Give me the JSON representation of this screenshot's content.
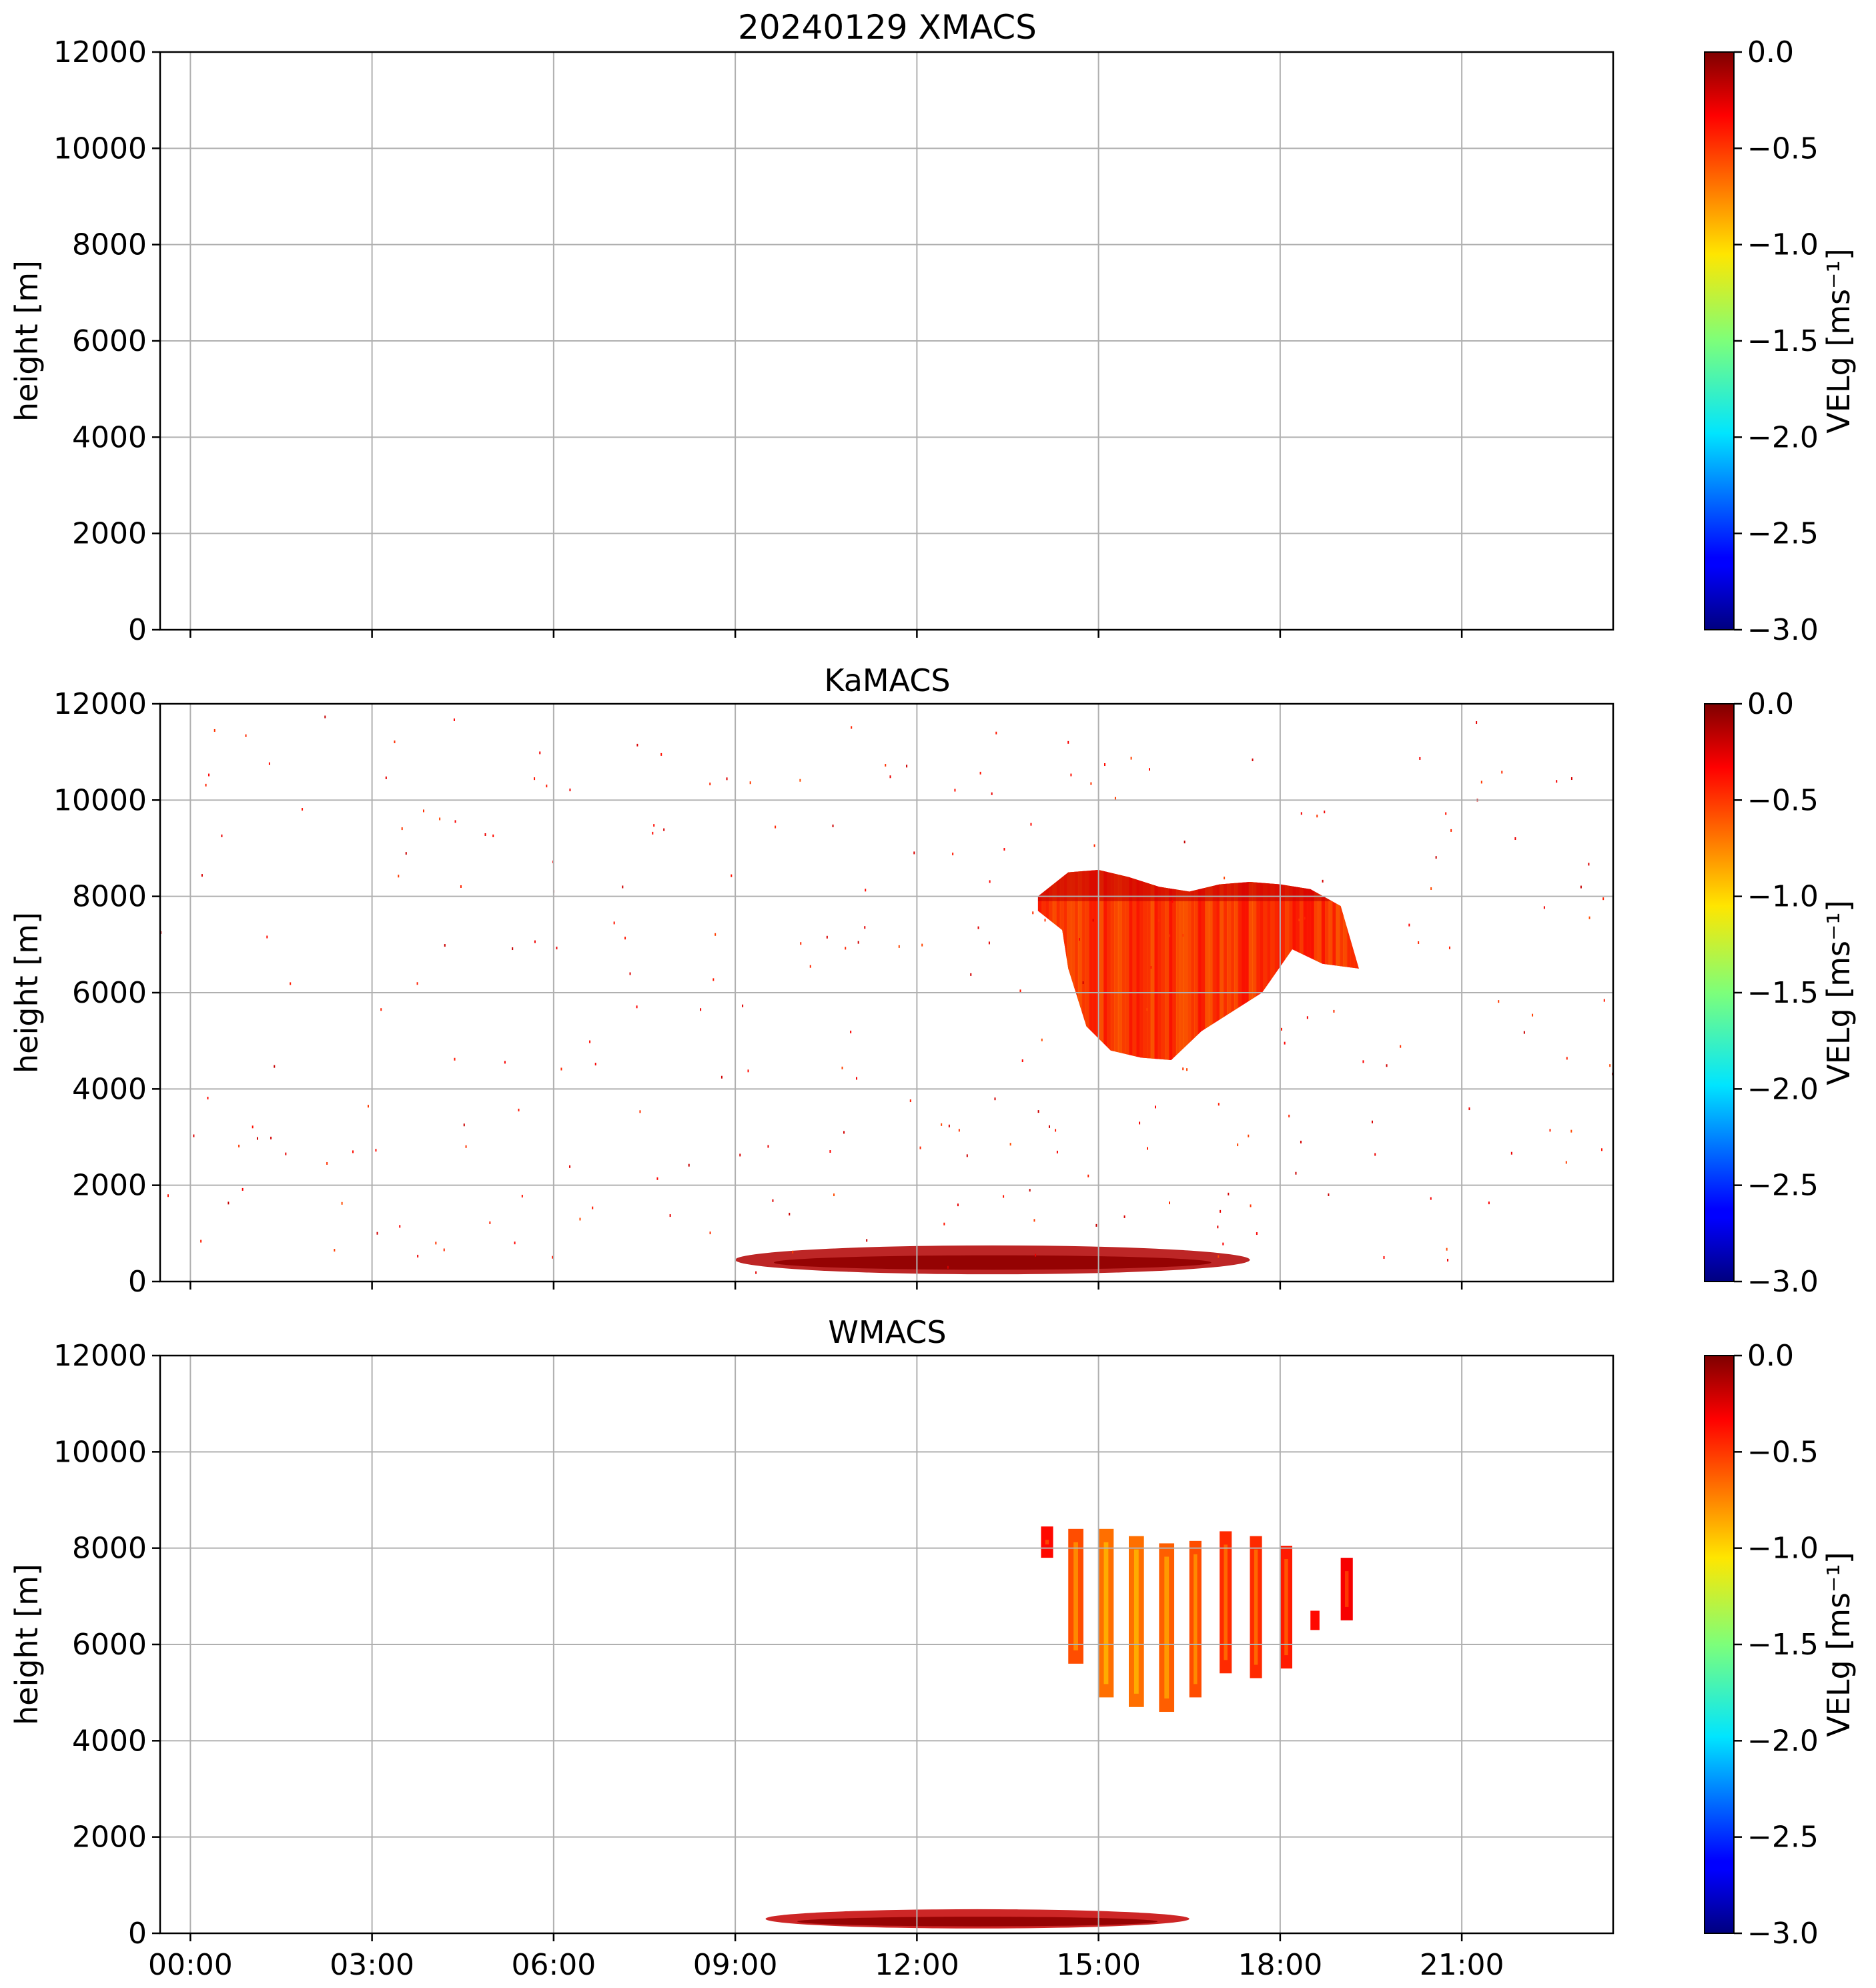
{
  "figure": {
    "panels": [
      {
        "title": "20240129 XMACS",
        "ylabel": "height [m]",
        "colorbar_label": "VELg [ms⁻¹]"
      },
      {
        "title": "KaMACS",
        "ylabel": "height [m]",
        "colorbar_label": "VELg [ms⁻¹]"
      },
      {
        "title": "WMACS",
        "ylabel": "height [m]",
        "colorbar_label": "VELg [ms⁻¹]"
      }
    ],
    "x_ticks": [
      "00:00",
      "03:00",
      "06:00",
      "09:00",
      "12:00",
      "15:00",
      "18:00",
      "21:00"
    ],
    "y_ticks": [
      "0",
      "2000",
      "4000",
      "6000",
      "8000",
      "10000",
      "12000"
    ],
    "colorbar_ticks": [
      "0.0",
      "−0.5",
      "−1.0",
      "−1.5",
      "−2.0",
      "−2.5",
      "−3.0"
    ]
  },
  "chart_data": [
    {
      "type": "heatmap",
      "title": "20240129 XMACS",
      "xlabel": "",
      "ylabel": "height [m]",
      "x_unit": "hours UTC",
      "xlim": [
        -0.5,
        23.5
      ],
      "ylim": [
        0,
        12000
      ],
      "grid": true,
      "colormap": "jet",
      "color_range": [
        -3.0,
        0.0
      ],
      "colorbar_label": "VELg [ms⁻¹]",
      "regions": []
    },
    {
      "type": "heatmap",
      "title": "KaMACS",
      "xlabel": "",
      "ylabel": "height [m]",
      "x_unit": "hours UTC",
      "xlim": [
        -0.5,
        23.5
      ],
      "ylim": [
        0,
        12000
      ],
      "grid": true,
      "colormap": "jet",
      "color_range": [
        -3.0,
        0.0
      ],
      "colorbar_label": "VELg [ms⁻¹]",
      "regions": [
        {
          "kind": "cloud",
          "t_start": 14.0,
          "t_end": 19.3,
          "outline": [
            [
              14.0,
              8000
            ],
            [
              14.5,
              8500
            ],
            [
              15.0,
              8550
            ],
            [
              15.5,
              8400
            ],
            [
              16.0,
              8200
            ],
            [
              16.5,
              8100
            ],
            [
              17.0,
              8250
            ],
            [
              17.5,
              8300
            ],
            [
              18.0,
              8250
            ],
            [
              18.5,
              8150
            ],
            [
              19.0,
              7800
            ],
            [
              19.3,
              6500
            ],
            [
              18.7,
              6600
            ],
            [
              18.2,
              6900
            ],
            [
              17.7,
              6000
            ],
            [
              17.2,
              5600
            ],
            [
              16.7,
              5200
            ],
            [
              16.2,
              4600
            ],
            [
              15.7,
              4650
            ],
            [
              15.2,
              4800
            ],
            [
              14.8,
              5300
            ],
            [
              14.5,
              6500
            ],
            [
              14.4,
              7300
            ],
            [
              14.0,
              7700
            ]
          ],
          "vel_core": -0.7,
          "vel_edge": -0.3
        },
        {
          "kind": "boundary_layer",
          "t_start": 9.0,
          "t_end": 17.5,
          "height_base": 150,
          "height_top": 750,
          "vel": -0.15
        }
      ]
    },
    {
      "type": "heatmap",
      "title": "WMACS",
      "xlabel": "",
      "ylabel": "height [m]",
      "x_unit": "hours UTC",
      "xlim": [
        -0.5,
        23.5
      ],
      "ylim": [
        0,
        12000
      ],
      "grid": true,
      "colormap": "jet",
      "color_range": [
        -3.0,
        0.0
      ],
      "colorbar_label": "VELg [ms⁻¹]",
      "regions": [
        {
          "kind": "profile_strip",
          "t_start": 14.05,
          "t_end": 14.25,
          "base": 7800,
          "top": 8450,
          "vel": -0.4
        },
        {
          "kind": "profile_strip",
          "t_start": 14.5,
          "t_end": 14.75,
          "base": 5600,
          "top": 8400,
          "vel": -0.6
        },
        {
          "kind": "profile_strip",
          "t_start": 15.0,
          "t_end": 15.25,
          "base": 4900,
          "top": 8400,
          "vel": -0.7
        },
        {
          "kind": "profile_strip",
          "t_start": 15.5,
          "t_end": 15.75,
          "base": 4700,
          "top": 8250,
          "vel": -0.7
        },
        {
          "kind": "profile_strip",
          "t_start": 16.0,
          "t_end": 16.25,
          "base": 4600,
          "top": 8100,
          "vel": -0.65
        },
        {
          "kind": "profile_strip",
          "t_start": 16.5,
          "t_end": 16.7,
          "base": 4900,
          "top": 8150,
          "vel": -0.6
        },
        {
          "kind": "profile_strip",
          "t_start": 17.0,
          "t_end": 17.2,
          "base": 5400,
          "top": 8350,
          "vel": -0.5
        },
        {
          "kind": "profile_strip",
          "t_start": 17.5,
          "t_end": 17.7,
          "base": 5300,
          "top": 8250,
          "vel": -0.5
        },
        {
          "kind": "profile_strip",
          "t_start": 18.0,
          "t_end": 18.2,
          "base": 5500,
          "top": 8050,
          "vel": -0.45
        },
        {
          "kind": "profile_strip",
          "t_start": 18.5,
          "t_end": 18.65,
          "base": 6300,
          "top": 6700,
          "vel": -0.4
        },
        {
          "kind": "profile_strip",
          "t_start": 19.0,
          "t_end": 19.2,
          "base": 6500,
          "top": 7800,
          "vel": -0.35
        },
        {
          "kind": "boundary_layer",
          "t_start": 9.5,
          "t_end": 16.5,
          "height_base": 100,
          "height_top": 500,
          "vel": -0.2
        }
      ]
    }
  ]
}
